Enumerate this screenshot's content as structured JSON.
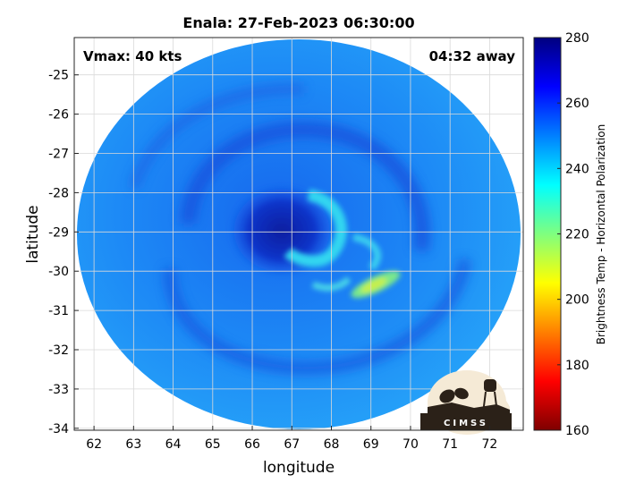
{
  "chart_data": {
    "type": "heatmap",
    "title": "Enala: 27-Feb-2023 06:30:00",
    "xlabel": "longitude",
    "ylabel": "latitude",
    "xlim": [
      61.5,
      72.85
    ],
    "ylim": [
      -34.05,
      -24.05
    ],
    "x_ticks": [
      62,
      63,
      64,
      65,
      66,
      67,
      68,
      69,
      70,
      71,
      72
    ],
    "y_ticks": [
      -25,
      -26,
      -27,
      -28,
      -29,
      -30,
      -31,
      -32,
      -33,
      -34
    ],
    "grid": true,
    "annotations": {
      "vmax": "Vmax: 40 kts",
      "away": "04:32 away"
    },
    "colorbar": {
      "label": "Brightness Temp - Horizontal Polarization",
      "range": [
        160,
        280
      ],
      "ticks": [
        280,
        260,
        240,
        220,
        200,
        180,
        160
      ],
      "colormap": "jet"
    },
    "swath": {
      "center_lon": 67.2,
      "center_lat": -29.1,
      "radius_deg": 5.6,
      "background_tb": 252
    },
    "features": [
      {
        "name": "eye-core",
        "lon": 66.6,
        "lat": -29.0,
        "tb": 265
      },
      {
        "name": "inner-band",
        "lon": 68.0,
        "lat": -28.9,
        "tb": 232
      },
      {
        "name": "outer-band",
        "lon": 69.3,
        "lat": -30.4,
        "tb": 212
      },
      {
        "name": "south-arc",
        "lon": 67.8,
        "lat": -30.4,
        "tb": 238
      }
    ]
  },
  "logo": {
    "text": "CIMSS",
    "colors": {
      "dark": "#2b2118",
      "light": "#f5ead6"
    }
  },
  "colors": {
    "grid": "#d9d9d9",
    "axis": "#262626"
  }
}
